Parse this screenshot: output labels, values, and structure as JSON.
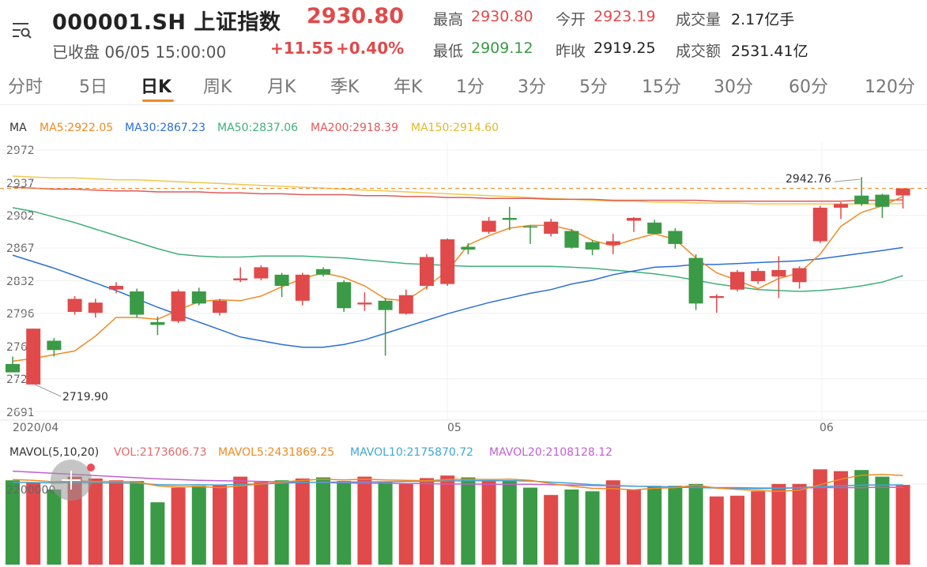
{
  "header": {
    "symbol": "000001.SH 上证指数",
    "price": "2930.80",
    "status": "已收盘 06/05 15:00:00",
    "change": "+11.55",
    "change_pct": "+0.40%",
    "stats": {
      "high_label": "最高",
      "high": "2930.80",
      "low_label": "最低",
      "low": "2909.12",
      "open_label": "今开",
      "open": "2923.19",
      "prev_label": "昨收",
      "prev": "2919.25",
      "vol_label": "成交量",
      "vol": "2.17亿手",
      "amt_label": "成交额",
      "amt": "2531.41亿"
    }
  },
  "tabs": [
    "分时",
    "5日",
    "日K",
    "周K",
    "月K",
    "季K",
    "年K",
    "1分",
    "3分",
    "5分",
    "15分",
    "30分",
    "60分",
    "120分"
  ],
  "active_tab": "日K",
  "ma_legend": {
    "ma": "MA",
    "ma5": "MA5:2922.05",
    "ma30": "MA30:2867.23",
    "ma50": "MA50:2837.06",
    "ma200": "MA200:2918.39",
    "ma150": "MA150:2914.60"
  },
  "vol_legend": {
    "label": "MAVOL(5,10,20)",
    "vol": "VOL:2173606.73",
    "mavol5": "MAVOL5:2431869.25",
    "mavol10": "MAVOL10:2175870.72",
    "mavol20": "MAVOL20:2108128.12"
  },
  "colors": {
    "up": "#e04a4a",
    "down": "#3a9a45",
    "ma5": "#f08a24",
    "ma30": "#2a6fd6",
    "ma50": "#3fb07a",
    "ma200": "#e05a5a",
    "ma150": "#f0c850",
    "mavol5": "#f08a24",
    "mavol10": "#3fa6d6",
    "mavol20": "#c060d0"
  },
  "chart_data": {
    "type": "candlestick",
    "y_ticks": [
      "2972",
      "2937",
      "2902",
      "2867",
      "2832",
      "2796",
      "2761",
      "2726",
      "2691"
    ],
    "x_labels": [
      "2020/04",
      "05",
      "06"
    ],
    "ylim": [
      2691,
      2972
    ],
    "high_marker": "2942.76",
    "low_marker": "2719.90",
    "last_price": 2930.8,
    "candles": [
      {
        "o": 2742,
        "c": 2733,
        "h": 2750,
        "l": 2733
      },
      {
        "o": 2720,
        "c": 2780,
        "h": 2780,
        "l": 2719.9
      },
      {
        "o": 2767,
        "c": 2757,
        "h": 2770,
        "l": 2750
      },
      {
        "o": 2798,
        "c": 2812,
        "h": 2815,
        "l": 2795
      },
      {
        "o": 2797,
        "c": 2808,
        "h": 2812,
        "l": 2792
      },
      {
        "o": 2822,
        "c": 2826,
        "h": 2830,
        "l": 2818
      },
      {
        "o": 2820,
        "c": 2795,
        "h": 2823,
        "l": 2792
      },
      {
        "o": 2787,
        "c": 2784,
        "h": 2793,
        "l": 2773
      },
      {
        "o": 2788,
        "c": 2820,
        "h": 2822,
        "l": 2786
      },
      {
        "o": 2820,
        "c": 2807,
        "h": 2824,
        "l": 2805
      },
      {
        "o": 2797,
        "c": 2810,
        "h": 2812,
        "l": 2794
      },
      {
        "o": 2832,
        "c": 2834,
        "h": 2846,
        "l": 2830
      },
      {
        "o": 2834,
        "c": 2846,
        "h": 2848,
        "l": 2832
      },
      {
        "o": 2838,
        "c": 2826,
        "h": 2840,
        "l": 2814
      },
      {
        "o": 2810,
        "c": 2838,
        "h": 2840,
        "l": 2805
      },
      {
        "o": 2844,
        "c": 2838,
        "h": 2846,
        "l": 2836
      },
      {
        "o": 2830,
        "c": 2802,
        "h": 2832,
        "l": 2798
      },
      {
        "o": 2806,
        "c": 2808,
        "h": 2819,
        "l": 2799
      },
      {
        "o": 2810,
        "c": 2800,
        "h": 2813,
        "l": 2751
      },
      {
        "o": 2796,
        "c": 2816,
        "h": 2822,
        "l": 2795
      },
      {
        "o": 2826,
        "c": 2857,
        "h": 2860,
        "l": 2822
      },
      {
        "o": 2828,
        "c": 2876,
        "h": 2877,
        "l": 2826
      },
      {
        "o": 2868,
        "c": 2865,
        "h": 2872,
        "l": 2860
      },
      {
        "o": 2884,
        "c": 2896,
        "h": 2900,
        "l": 2882
      },
      {
        "o": 2899,
        "c": 2897,
        "h": 2911,
        "l": 2886
      },
      {
        "o": 2890,
        "c": 2889,
        "h": 2891,
        "l": 2871
      },
      {
        "o": 2882,
        "c": 2895,
        "h": 2898,
        "l": 2879
      },
      {
        "o": 2885,
        "c": 2867,
        "h": 2887,
        "l": 2866
      },
      {
        "o": 2873,
        "c": 2865,
        "h": 2875,
        "l": 2859
      },
      {
        "o": 2870,
        "c": 2874,
        "h": 2882,
        "l": 2860
      },
      {
        "o": 2896,
        "c": 2899,
        "h": 2900,
        "l": 2884
      },
      {
        "o": 2894,
        "c": 2882,
        "h": 2897,
        "l": 2881
      },
      {
        "o": 2885,
        "c": 2871,
        "h": 2888,
        "l": 2866
      },
      {
        "o": 2856,
        "c": 2807,
        "h": 2860,
        "l": 2800
      },
      {
        "o": 2813,
        "c": 2815,
        "h": 2817,
        "l": 2797
      },
      {
        "o": 2822,
        "c": 2841,
        "h": 2843,
        "l": 2820
      },
      {
        "o": 2831,
        "c": 2842,
        "h": 2845,
        "l": 2828
      },
      {
        "o": 2836,
        "c": 2843,
        "h": 2858,
        "l": 2813
      },
      {
        "o": 2830,
        "c": 2845,
        "h": 2847,
        "l": 2823
      },
      {
        "o": 2874,
        "c": 2910,
        "h": 2912,
        "l": 2872
      },
      {
        "o": 2910,
        "c": 2914,
        "h": 2916,
        "l": 2898
      },
      {
        "o": 2923,
        "c": 2914,
        "h": 2943,
        "l": 2912
      },
      {
        "o": 2924,
        "c": 2911,
        "h": 2925,
        "l": 2899
      },
      {
        "o": 2923.19,
        "c": 2930.8,
        "h": 2930.8,
        "l": 2909.12
      }
    ],
    "ma5": [
      2745,
      2748,
      2752,
      2756,
      2772,
      2792,
      2792,
      2790,
      2800,
      2809,
      2811,
      2810,
      2815,
      2825,
      2834,
      2840,
      2835,
      2826,
      2812,
      2810,
      2825,
      2842,
      2870,
      2880,
      2888,
      2891,
      2891,
      2886,
      2875,
      2869,
      2876,
      2882,
      2876,
      2856,
      2840,
      2832,
      2823,
      2834,
      2840,
      2860,
      2890,
      2905,
      2912,
      2922.05
    ],
    "ma30": [
      2859,
      2852,
      2845,
      2837,
      2829,
      2821,
      2812,
      2803,
      2795,
      2787,
      2779,
      2771,
      2767,
      2763,
      2760,
      2760,
      2763,
      2768,
      2775,
      2782,
      2789,
      2796,
      2802,
      2808,
      2813,
      2818,
      2822,
      2828,
      2832,
      2838,
      2842,
      2846,
      2847,
      2849,
      2849,
      2850,
      2851,
      2852,
      2853,
      2855,
      2858,
      2861,
      2864,
      2867.23
    ],
    "ma50": [
      2910,
      2906,
      2900,
      2894,
      2887,
      2880,
      2873,
      2866,
      2860,
      2858,
      2857,
      2857,
      2858,
      2858,
      2858,
      2857,
      2856,
      2854,
      2852,
      2850,
      2849,
      2848,
      2847,
      2847,
      2847,
      2847,
      2847,
      2846,
      2845,
      2843,
      2841,
      2839,
      2836,
      2832,
      2828,
      2825,
      2822,
      2821,
      2820,
      2821,
      2823,
      2826,
      2830,
      2837.06
    ],
    "ma200": [
      2932,
      2931,
      2930,
      2930,
      2929,
      2928,
      2928,
      2927,
      2927,
      2927,
      2926,
      2926,
      2925,
      2925,
      2924,
      2924,
      2924,
      2923,
      2923,
      2922,
      2922,
      2921,
      2921,
      2920,
      2920,
      2920,
      2919,
      2919,
      2919,
      2918,
      2918,
      2918,
      2918,
      2918,
      2917,
      2917,
      2917,
      2917,
      2917,
      2917,
      2917,
      2918,
      2918,
      2918.39
    ],
    "ma150": [
      2944,
      2943,
      2942,
      2942,
      2941,
      2940,
      2940,
      2939,
      2938,
      2937,
      2936,
      2935,
      2934,
      2933,
      2932,
      2931,
      2930,
      2929,
      2928,
      2927,
      2926,
      2925,
      2924,
      2923,
      2922,
      2921,
      2920,
      2919,
      2918,
      2917,
      2917,
      2916,
      2916,
      2915,
      2915,
      2915,
      2914,
      2914,
      2914,
      2914,
      2914,
      2914,
      2914,
      2914.6
    ]
  },
  "vol_chart": {
    "y_tick": "2200000",
    "ylim": [
      0,
      2800000
    ],
    "volumes": [
      2300000,
      2250000,
      2050000,
      2400000,
      2350000,
      2300000,
      2280000,
      1700000,
      2100000,
      2150000,
      2180000,
      2400000,
      2250000,
      2300000,
      2350000,
      2380000,
      2280000,
      2400000,
      2250000,
      2200000,
      2360000,
      2430000,
      2380000,
      2300000,
      2300000,
      2100000,
      1900000,
      2050000,
      2000000,
      2300000,
      2050000,
      2150000,
      2150000,
      2200000,
      1860000,
      1880000,
      2000000,
      2200000,
      2200000,
      2600000,
      2550000,
      2580000,
      2400000,
      2173606.73
    ],
    "mavol5": [
      2320000,
      2300000,
      2260000,
      2280000,
      2270000,
      2270000,
      2260000,
      2150000,
      2120000,
      2130000,
      2100000,
      2150000,
      2200000,
      2250000,
      2300000,
      2330000,
      2310000,
      2330000,
      2310000,
      2300000,
      2290000,
      2320000,
      2330000,
      2320000,
      2330000,
      2300000,
      2210000,
      2140000,
      2080000,
      2070000,
      2040000,
      2080000,
      2100000,
      2170000,
      2090000,
      2050000,
      2020000,
      2000000,
      2030000,
      2180000,
      2330000,
      2440000,
      2460000,
      2431869.25
    ],
    "mavol10": [
      2250000,
      2240000,
      2230000,
      2240000,
      2230000,
      2230000,
      2220000,
      2180000,
      2170000,
      2180000,
      2170000,
      2190000,
      2200000,
      2220000,
      2240000,
      2250000,
      2250000,
      2260000,
      2260000,
      2270000,
      2270000,
      2280000,
      2290000,
      2290000,
      2290000,
      2280000,
      2250000,
      2220000,
      2180000,
      2160000,
      2140000,
      2130000,
      2110000,
      2100000,
      2090000,
      2080000,
      2070000,
      2080000,
      2100000,
      2130000,
      2150000,
      2170000,
      2170000,
      2175870.72
    ],
    "mavol20": [
      2550000,
      2520000,
      2490000,
      2460000,
      2430000,
      2400000,
      2370000,
      2340000,
      2320000,
      2300000,
      2290000,
      2280000,
      2270000,
      2260000,
      2250000,
      2240000,
      2230000,
      2220000,
      2220000,
      2210000,
      2210000,
      2200000,
      2200000,
      2190000,
      2190000,
      2190000,
      2180000,
      2170000,
      2160000,
      2150000,
      2140000,
      2130000,
      2120000,
      2110000,
      2100000,
      2100000,
      2090000,
      2090000,
      2090000,
      2100000,
      2100000,
      2100000,
      2110000,
      2108128.12
    ]
  }
}
